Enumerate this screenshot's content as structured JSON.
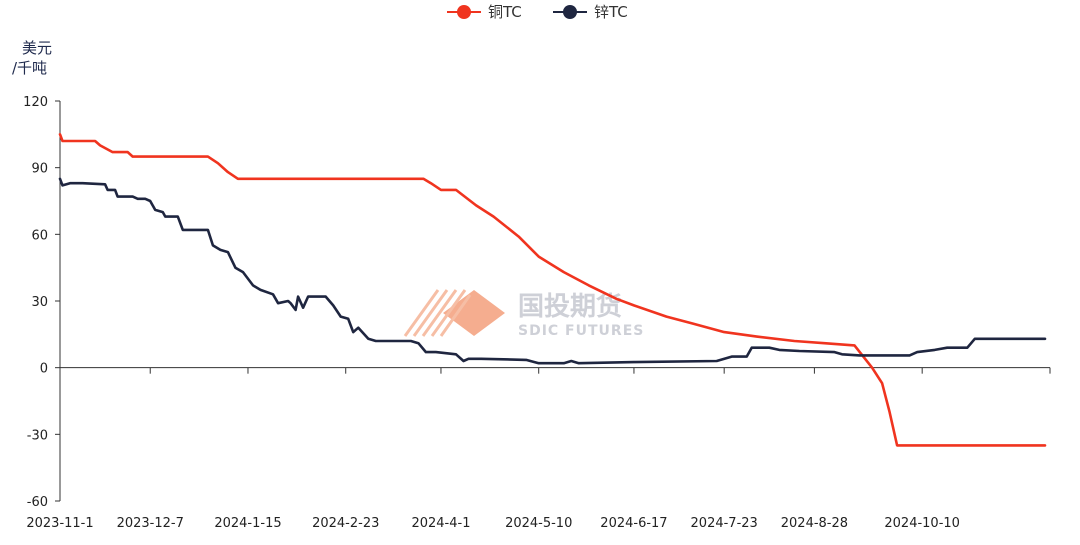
{
  "chart_data": {
    "type": "line",
    "ylabel_line1": "美元",
    "ylabel_line2": "/千吨",
    "ylim": [
      -60,
      120
    ],
    "yticks": [
      -60,
      -30,
      0,
      30,
      60,
      90,
      120
    ],
    "ytick_labels": [
      "-60",
      "-30",
      "0",
      "30",
      "60",
      "90",
      "120"
    ],
    "xlim": [
      "2023-11-01",
      "2024-11-30"
    ],
    "xticks": [
      "2023-11-01",
      "2023-12-07",
      "2024-01-15",
      "2024-02-23",
      "2024-04-01",
      "2024-05-10",
      "2024-06-17",
      "2024-07-23",
      "2024-08-28",
      "2024-10-10"
    ],
    "xtick_labels": [
      "2023-11-1",
      "2023-12-7",
      "2024-1-15",
      "2024-2-23",
      "2024-4-1",
      "2024-5-10",
      "2024-6-17",
      "2024-7-23",
      "2024-8-28",
      "2024-10-10"
    ],
    "legend_position": "top-center",
    "series": [
      {
        "name": "铜TC",
        "color": "#f0341f",
        "points": [
          [
            "2023-11-01",
            105
          ],
          [
            "2023-11-02",
            102
          ],
          [
            "2023-11-15",
            102
          ],
          [
            "2023-11-17",
            100
          ],
          [
            "2023-11-22",
            97
          ],
          [
            "2023-11-28",
            97
          ],
          [
            "2023-11-30",
            95
          ],
          [
            "2023-12-07",
            95
          ],
          [
            "2023-12-30",
            95
          ],
          [
            "2024-01-03",
            92
          ],
          [
            "2024-01-07",
            88
          ],
          [
            "2024-01-11",
            85
          ],
          [
            "2024-01-15",
            85
          ],
          [
            "2024-03-25",
            85
          ],
          [
            "2024-03-28",
            83
          ],
          [
            "2024-04-01",
            80
          ],
          [
            "2024-04-07",
            80
          ],
          [
            "2024-04-15",
            73
          ],
          [
            "2024-04-22",
            68
          ],
          [
            "2024-05-02",
            59
          ],
          [
            "2024-05-10",
            50
          ],
          [
            "2024-05-20",
            43
          ],
          [
            "2024-05-30",
            37
          ],
          [
            "2024-06-10",
            31
          ],
          [
            "2024-06-17",
            28
          ],
          [
            "2024-06-30",
            23
          ],
          [
            "2024-07-10",
            20
          ],
          [
            "2024-07-23",
            16
          ],
          [
            "2024-08-05",
            14
          ],
          [
            "2024-08-20",
            12
          ],
          [
            "2024-09-01",
            11
          ],
          [
            "2024-09-13",
            10
          ],
          [
            "2024-09-20",
            0
          ],
          [
            "2024-09-24",
            -7
          ],
          [
            "2024-09-27",
            -20
          ],
          [
            "2024-09-30",
            -35
          ],
          [
            "2024-11-28",
            -35
          ]
        ]
      },
      {
        "name": "锌TC",
        "color": "#1f2640",
        "points": [
          [
            "2023-11-01",
            85
          ],
          [
            "2023-11-02",
            82
          ],
          [
            "2023-11-05",
            83
          ],
          [
            "2023-11-10",
            83
          ],
          [
            "2023-11-19",
            82.5
          ],
          [
            "2023-11-20",
            80
          ],
          [
            "2023-11-23",
            80
          ],
          [
            "2023-11-24",
            77
          ],
          [
            "2023-11-30",
            77
          ],
          [
            "2023-12-02",
            76
          ],
          [
            "2023-12-05",
            76
          ],
          [
            "2023-12-07",
            75
          ],
          [
            "2023-12-09",
            71
          ],
          [
            "2023-12-12",
            70
          ],
          [
            "2023-12-13",
            68
          ],
          [
            "2023-12-18",
            68
          ],
          [
            "2023-12-20",
            62
          ],
          [
            "2023-12-30",
            62
          ],
          [
            "2024-01-01",
            55
          ],
          [
            "2024-01-04",
            53
          ],
          [
            "2024-01-07",
            52
          ],
          [
            "2024-01-10",
            45
          ],
          [
            "2024-01-13",
            43
          ],
          [
            "2024-01-17",
            37
          ],
          [
            "2024-01-20",
            35
          ],
          [
            "2024-01-25",
            33
          ],
          [
            "2024-01-27",
            29
          ],
          [
            "2024-01-31",
            30
          ],
          [
            "2024-02-01",
            29
          ],
          [
            "2024-02-03",
            26
          ],
          [
            "2024-02-04",
            32
          ],
          [
            "2024-02-06",
            27
          ],
          [
            "2024-02-08",
            32
          ],
          [
            "2024-02-15",
            32
          ],
          [
            "2024-02-18",
            28
          ],
          [
            "2024-02-21",
            23
          ],
          [
            "2024-02-24",
            22
          ],
          [
            "2024-02-26",
            16
          ],
          [
            "2024-02-28",
            18
          ],
          [
            "2024-03-03",
            13
          ],
          [
            "2024-03-06",
            12
          ],
          [
            "2024-03-20",
            12
          ],
          [
            "2024-03-23",
            11
          ],
          [
            "2024-03-26",
            7
          ],
          [
            "2024-03-30",
            7
          ],
          [
            "2024-04-07",
            6
          ],
          [
            "2024-04-10",
            3
          ],
          [
            "2024-04-12",
            4
          ],
          [
            "2024-04-17",
            4
          ],
          [
            "2024-05-05",
            3.5
          ],
          [
            "2024-05-10",
            2
          ],
          [
            "2024-05-20",
            2
          ],
          [
            "2024-05-23",
            3
          ],
          [
            "2024-05-26",
            2
          ],
          [
            "2024-06-17",
            2.5
          ],
          [
            "2024-07-20",
            3
          ],
          [
            "2024-07-26",
            5
          ],
          [
            "2024-08-01",
            5
          ],
          [
            "2024-08-03",
            9
          ],
          [
            "2024-08-10",
            9
          ],
          [
            "2024-08-14",
            8
          ],
          [
            "2024-08-22",
            7.5
          ],
          [
            "2024-09-05",
            7
          ],
          [
            "2024-09-08",
            6
          ],
          [
            "2024-09-15",
            5.5
          ],
          [
            "2024-10-05",
            5.5
          ],
          [
            "2024-10-08",
            7
          ],
          [
            "2024-10-15",
            8
          ],
          [
            "2024-10-20",
            9
          ],
          [
            "2024-10-28",
            9
          ],
          [
            "2024-10-31",
            13
          ],
          [
            "2024-11-28",
            13
          ]
        ]
      }
    ]
  },
  "watermark": {
    "name_cn": "国投期货",
    "name_en": "SDIC FUTURES",
    "logo_color": "#f2a07a"
  }
}
